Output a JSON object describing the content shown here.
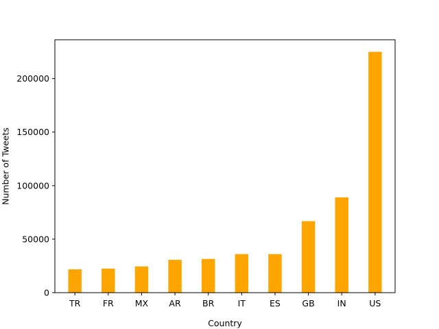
{
  "chart_data": {
    "type": "bar",
    "title": "",
    "xlabel": "Country",
    "ylabel": "Number of Tweets",
    "categories": [
      "TR",
      "FR",
      "MX",
      "AR",
      "BR",
      "IT",
      "ES",
      "GB",
      "IN",
      "US"
    ],
    "values": [
      21800,
      22500,
      24500,
      30700,
      31500,
      36000,
      36000,
      66800,
      89000,
      225000
    ],
    "ylim": [
      0,
      236250
    ],
    "yticks": [
      0,
      50000,
      100000,
      150000,
      200000
    ],
    "ytick_labels": [
      "0",
      "50000",
      "100000",
      "150000",
      "200000"
    ],
    "grid": false,
    "legend": "none",
    "bar_color": "#ffa500"
  }
}
